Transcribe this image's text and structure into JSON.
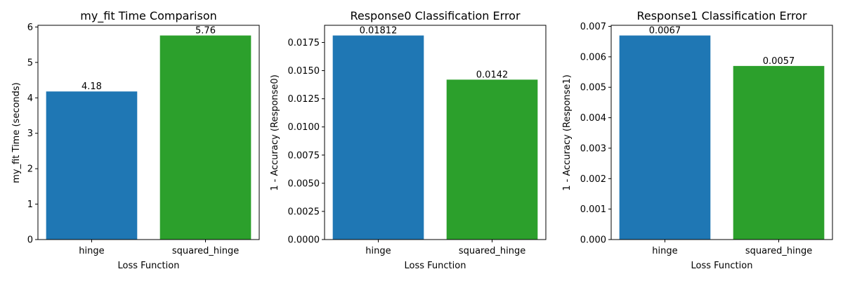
{
  "chart_data": [
    {
      "type": "bar",
      "title": "my_fit Time Comparison",
      "xlabel": "Loss Function",
      "ylabel": "my_fit Time (seconds)",
      "categories": [
        "hinge",
        "squared_hinge"
      ],
      "values": [
        4.18,
        5.76
      ],
      "data_labels": [
        "4.18",
        "5.76"
      ],
      "colors": [
        "#1f77b4",
        "#2ca02c"
      ],
      "ylim": [
        0,
        6.048
      ],
      "yticks": [
        0,
        1,
        2,
        3,
        4,
        5,
        6
      ],
      "ytick_labels": [
        "0",
        "1",
        "2",
        "3",
        "4",
        "5",
        "6"
      ],
      "grid": false,
      "legend": "none"
    },
    {
      "type": "bar",
      "title": "Response0 Classification Error",
      "xlabel": "Loss Function",
      "ylabel": "1 - Accuracy (Response0)",
      "categories": [
        "hinge",
        "squared_hinge"
      ],
      "values": [
        0.01812,
        0.0142
      ],
      "data_labels": [
        "0.01812",
        "0.0142"
      ],
      "colors": [
        "#1f77b4",
        "#2ca02c"
      ],
      "ylim": [
        0,
        0.019026
      ],
      "yticks": [
        0,
        0.0025,
        0.005,
        0.0075,
        0.01,
        0.0125,
        0.015,
        0.0175
      ],
      "ytick_labels": [
        "0.0000",
        "0.0025",
        "0.0050",
        "0.0075",
        "0.0100",
        "0.0125",
        "0.0150",
        "0.0175"
      ],
      "grid": false,
      "legend": "none"
    },
    {
      "type": "bar",
      "title": "Response1 Classification Error",
      "xlabel": "Loss Function",
      "ylabel": "1 - Accuracy (Response1)",
      "categories": [
        "hinge",
        "squared_hinge"
      ],
      "values": [
        0.0067,
        0.0057
      ],
      "data_labels": [
        "0.0067",
        "0.0057"
      ],
      "colors": [
        "#1f77b4",
        "#2ca02c"
      ],
      "ylim": [
        0,
        0.007035
      ],
      "yticks": [
        0,
        0.001,
        0.002,
        0.003,
        0.004,
        0.005,
        0.006,
        0.007
      ],
      "ytick_labels": [
        "0.000",
        "0.001",
        "0.002",
        "0.003",
        "0.004",
        "0.005",
        "0.006",
        "0.007"
      ],
      "grid": false,
      "legend": "none"
    }
  ]
}
